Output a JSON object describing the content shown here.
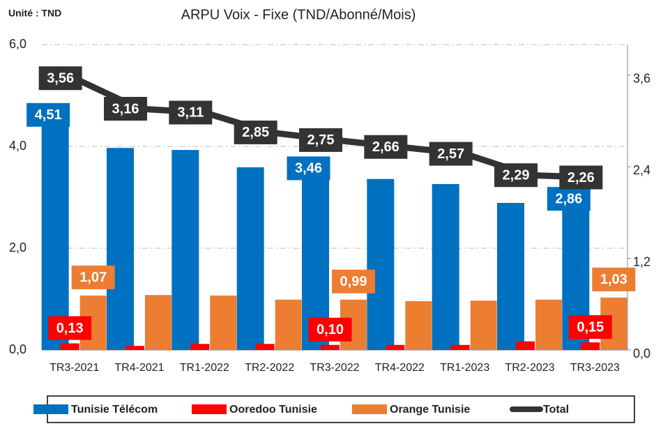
{
  "chart_data": {
    "type": "bar",
    "title": "ARPU Voix - Fixe (TND/Abonné/Mois)",
    "unit_note": "Unité : TND",
    "categories": [
      "TR3-2021",
      "TR4-2021",
      "TR1-2022",
      "TR2-2022",
      "TR3-2022",
      "TR4-2022",
      "TR1-2023",
      "TR2-2023",
      "TR3-2023"
    ],
    "series": [
      {
        "name": "Tunisie Télécom",
        "color": "#0070c0",
        "values": [
          4.51,
          3.97,
          3.93,
          3.59,
          3.46,
          3.36,
          3.26,
          2.89,
          2.86
        ],
        "value_labels": [
          "4,51",
          null,
          null,
          null,
          "3,46",
          null,
          null,
          null,
          "2,86"
        ]
      },
      {
        "name": "Ooredoo Tunisie",
        "color": "#ff0000",
        "values": [
          0.13,
          0.08,
          0.12,
          0.12,
          0.1,
          0.1,
          0.1,
          0.17,
          0.15
        ],
        "value_labels": [
          "0,13",
          null,
          null,
          null,
          "0,10",
          null,
          null,
          null,
          "0,15"
        ]
      },
      {
        "name": "Orange Tunisie",
        "color": "#ed7d31",
        "values": [
          1.07,
          1.08,
          1.07,
          0.99,
          0.99,
          0.96,
          0.97,
          0.99,
          1.03
        ],
        "value_labels": [
          "1,07",
          null,
          null,
          null,
          "0,99",
          null,
          null,
          null,
          "1,03"
        ]
      },
      {
        "name": "Total",
        "color": "#333333",
        "type": "line",
        "axis": "y2",
        "values": [
          3.56,
          3.16,
          3.11,
          2.85,
          2.75,
          2.66,
          2.57,
          2.29,
          2.26
        ],
        "value_labels": [
          "3,56",
          "3,16",
          "3,11",
          "2,85",
          "2,75",
          "2,66",
          "2,57",
          "2,29",
          "2,26"
        ]
      }
    ],
    "ylim": [
      0,
      6
    ],
    "yticks": [
      {
        "value": 0,
        "label": "0,0"
      },
      {
        "value": 2,
        "label": "2,0"
      },
      {
        "value": 4,
        "label": "4,0"
      },
      {
        "value": 6,
        "label": "6,0"
      }
    ],
    "y2lim": [
      0,
      4
    ],
    "y2ticks": [
      {
        "value": 0,
        "label": "0,0"
      },
      {
        "value": 1.2,
        "label": "1,2"
      },
      {
        "value": 2.4,
        "label": "2,4"
      },
      {
        "value": 3.6,
        "label": "3,6"
      }
    ],
    "grid": true,
    "legend": "bottom"
  }
}
